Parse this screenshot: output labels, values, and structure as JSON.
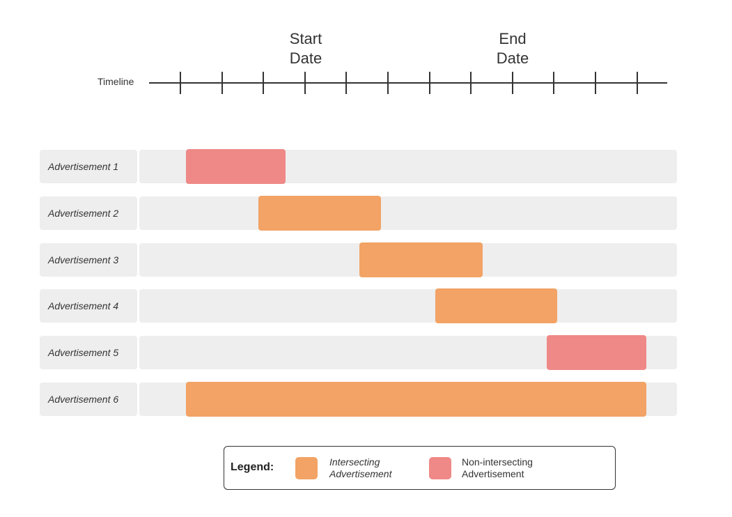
{
  "timeline": {
    "label": "Timeline",
    "tick_count": 12,
    "start_marker": {
      "line1": "Start",
      "line2": "Date"
    },
    "end_marker": {
      "line1": "End",
      "line2": "Date"
    }
  },
  "colors": {
    "intersecting": "#f2a365",
    "non_intersecting": "#ef8987",
    "row_background": "#eeeeee",
    "line": "#333333"
  },
  "rows": [
    {
      "label": "Advertisement 1",
      "type": "non_intersecting",
      "start_tick": 0.15,
      "end_tick": 2.55
    },
    {
      "label": "Advertisement 2",
      "type": "intersecting",
      "start_tick": 1.9,
      "end_tick": 4.85
    },
    {
      "label": "Advertisement 3",
      "type": "intersecting",
      "start_tick": 4.33,
      "end_tick": 7.3
    },
    {
      "label": "Advertisement 4",
      "type": "intersecting",
      "start_tick": 6.15,
      "end_tick": 9.1
    },
    {
      "label": "Advertisement 5",
      "type": "non_intersecting",
      "start_tick": 8.85,
      "end_tick": 11.25
    },
    {
      "label": "Advertisement 6",
      "type": "intersecting",
      "start_tick": 0.15,
      "end_tick": 11.25
    }
  ],
  "legend": {
    "title": "Legend:",
    "items": [
      {
        "type": "intersecting",
        "line1": "Intersecting",
        "line2": "Advertisement"
      },
      {
        "type": "non_intersecting",
        "line1": "Non-intersecting",
        "line2": "Advertisement"
      }
    ]
  }
}
